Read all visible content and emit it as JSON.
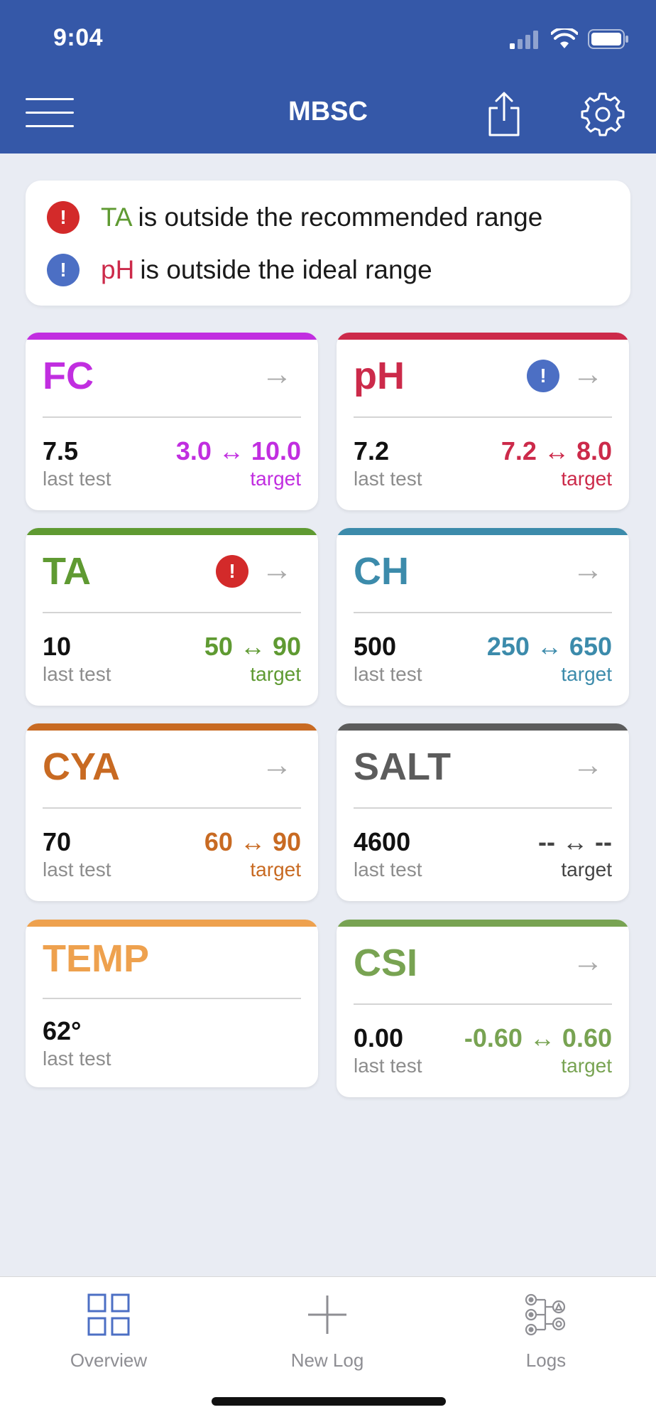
{
  "status_bar": {
    "time": "9:04"
  },
  "nav": {
    "title": "MBSC"
  },
  "alerts": [
    {
      "param": "TA",
      "text": "is outside the recommended range",
      "color": "#5f9a32",
      "badge_color": "#d32a2a",
      "badge_symbol": "!"
    },
    {
      "param": "pH",
      "text": "is outside the ideal range",
      "color": "#cc2a4a",
      "badge_color": "#4c6fc4",
      "badge_symbol": "!"
    }
  ],
  "arrow_symbol": "→",
  "cards": [
    {
      "name": "FC",
      "color": "#c12ee0",
      "last_value": "7.5",
      "last_label": "last test",
      "range": "3.0 ↔ 10.0",
      "target_label": "target",
      "warning": null
    },
    {
      "name": "pH",
      "color": "#cc2a4a",
      "last_value": "7.2",
      "last_label": "last test",
      "range": "7.2 ↔ 8.0",
      "target_label": "target",
      "warning": "#4c6fc4",
      "warning_symbol": "!"
    },
    {
      "name": "TA",
      "color": "#5f9a32",
      "last_value": "10",
      "last_label": "last test",
      "range": "50 ↔ 90",
      "target_label": "target",
      "warning": "#d32a2a",
      "warning_symbol": "!"
    },
    {
      "name": "CH",
      "color": "#3c8bab",
      "last_value": "500",
      "last_label": "last test",
      "range": "250 ↔ 650",
      "target_label": "target",
      "warning": null
    },
    {
      "name": "CYA",
      "color": "#c86a22",
      "last_value": "70",
      "last_label": "last test",
      "range": "60 ↔ 90",
      "target_label": "target",
      "warning": null
    },
    {
      "name": "SALT",
      "color": "#5c5c5c",
      "last_value": "4600",
      "last_label": "last test",
      "range": "-- ↔ --",
      "target_label": "target",
      "warning": null
    },
    {
      "name": "TEMP",
      "color": "#eea14e",
      "last_value": "62°",
      "last_label": "last test",
      "range": null,
      "target_label": null,
      "warning": null
    },
    {
      "name": "CSI",
      "color": "#78a352",
      "last_value": "0.00",
      "last_label": "last test",
      "range": "-0.60 ↔ 0.60",
      "target_label": "target",
      "warning": null
    }
  ],
  "tabs": [
    {
      "label": "Overview",
      "icon": "grid-icon",
      "active": true
    },
    {
      "label": "New Log",
      "icon": "plus-icon",
      "active": false
    },
    {
      "label": "Logs",
      "icon": "logs-icon",
      "active": false
    }
  ]
}
